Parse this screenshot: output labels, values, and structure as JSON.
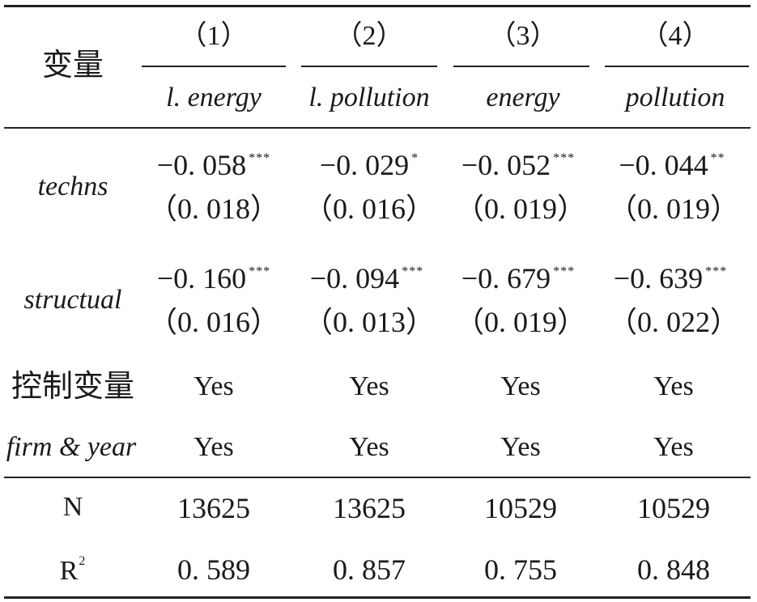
{
  "table": {
    "stub_header": "变量",
    "columns": [
      {
        "number": "（1）",
        "dep_var": "l. energy"
      },
      {
        "number": "（2）",
        "dep_var": "l. pollution"
      },
      {
        "number": "（3）",
        "dep_var": "energy"
      },
      {
        "number": "（4）",
        "dep_var": "pollution"
      }
    ],
    "coef_rows": [
      {
        "label": "techns",
        "cells": [
          {
            "coef": "−0. 058",
            "stars": "***",
            "se": "（0. 018）"
          },
          {
            "coef": "−0. 029",
            "stars": "*",
            "se": "（0. 016）"
          },
          {
            "coef": "−0. 052",
            "stars": "***",
            "se": "（0. 019）"
          },
          {
            "coef": "−0. 044",
            "stars": "**",
            "se": "（0. 019）"
          }
        ]
      },
      {
        "label": "structual",
        "cells": [
          {
            "coef": "−0. 160",
            "stars": "***",
            "se": "（0. 016）"
          },
          {
            "coef": "−0. 094",
            "stars": "***",
            "se": "（0. 013）"
          },
          {
            "coef": "−0. 679",
            "stars": "***",
            "se": "（0. 019）"
          },
          {
            "coef": "−0. 639",
            "stars": "***",
            "se": "（0. 022）"
          }
        ]
      }
    ],
    "control_rows": [
      {
        "label": "控制变量",
        "values": [
          "Yes",
          "Yes",
          "Yes",
          "Yes"
        ]
      },
      {
        "label": "firm & year",
        "values": [
          "Yes",
          "Yes",
          "Yes",
          "Yes"
        ]
      }
    ],
    "stat_rows": [
      {
        "label": "N",
        "label_sup": "",
        "values": [
          "13625",
          "13625",
          "10529",
          "10529"
        ]
      },
      {
        "label": "R",
        "label_sup": "2",
        "values": [
          "0. 589",
          "0. 857",
          "0. 755",
          "0. 848"
        ]
      }
    ]
  }
}
